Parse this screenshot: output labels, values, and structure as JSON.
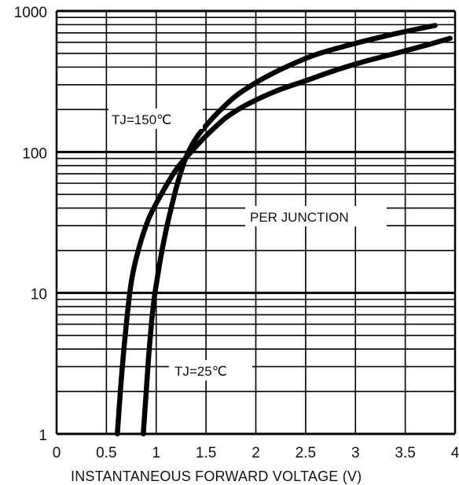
{
  "chart_data": {
    "type": "line",
    "xlabel": "INSTANTANEOUS FORWARD VOLTAGE (V)",
    "ylabel": "",
    "xlim": [
      0,
      4
    ],
    "ylim": [
      1,
      1000
    ],
    "yscale": "log",
    "grid": true,
    "x_ticks": [
      "0",
      "0.5",
      "1",
      "1.5",
      "2",
      "2.5",
      "3",
      "3.5",
      "4"
    ],
    "y_ticks": [
      "1",
      "10",
      "100",
      "1000"
    ],
    "annotations": [
      {
        "text": "TJ=150℃",
        "x": 0.78,
        "y": 240
      },
      {
        "text": "PER JUNCTION",
        "x": 2.38,
        "y": 37
      },
      {
        "text": "TJ=25℃",
        "x": 0.81,
        "y": 2.6
      }
    ],
    "series": [
      {
        "color": "#000000",
        "x": [
          0.61,
          0.63,
          0.66,
          0.7,
          0.75,
          0.82,
          0.92,
          1.05,
          1.2,
          1.35,
          1.5,
          1.7,
          1.9,
          2.2,
          2.5,
          2.8,
          3.1,
          3.4,
          3.7,
          3.95
        ],
        "y": [
          1,
          1.6,
          3,
          6,
          12,
          20,
          33,
          50,
          75,
          100,
          130,
          175,
          215,
          270,
          320,
          380,
          440,
          500,
          570,
          640
        ]
      },
      {
        "color": "#000000",
        "x": [
          0.87,
          0.9,
          0.93,
          0.97,
          1.02,
          1.08,
          1.15,
          1.22,
          1.3,
          1.4,
          1.52,
          1.65,
          1.8,
          2.0,
          2.2,
          2.4,
          2.6,
          2.8,
          3.0,
          3.2,
          3.4,
          3.6,
          3.8
        ],
        "y": [
          1,
          2,
          4,
          8,
          14,
          24,
          40,
          62,
          92,
          125,
          160,
          200,
          250,
          310,
          370,
          430,
          490,
          540,
          590,
          640,
          690,
          740,
          790
        ]
      }
    ]
  }
}
